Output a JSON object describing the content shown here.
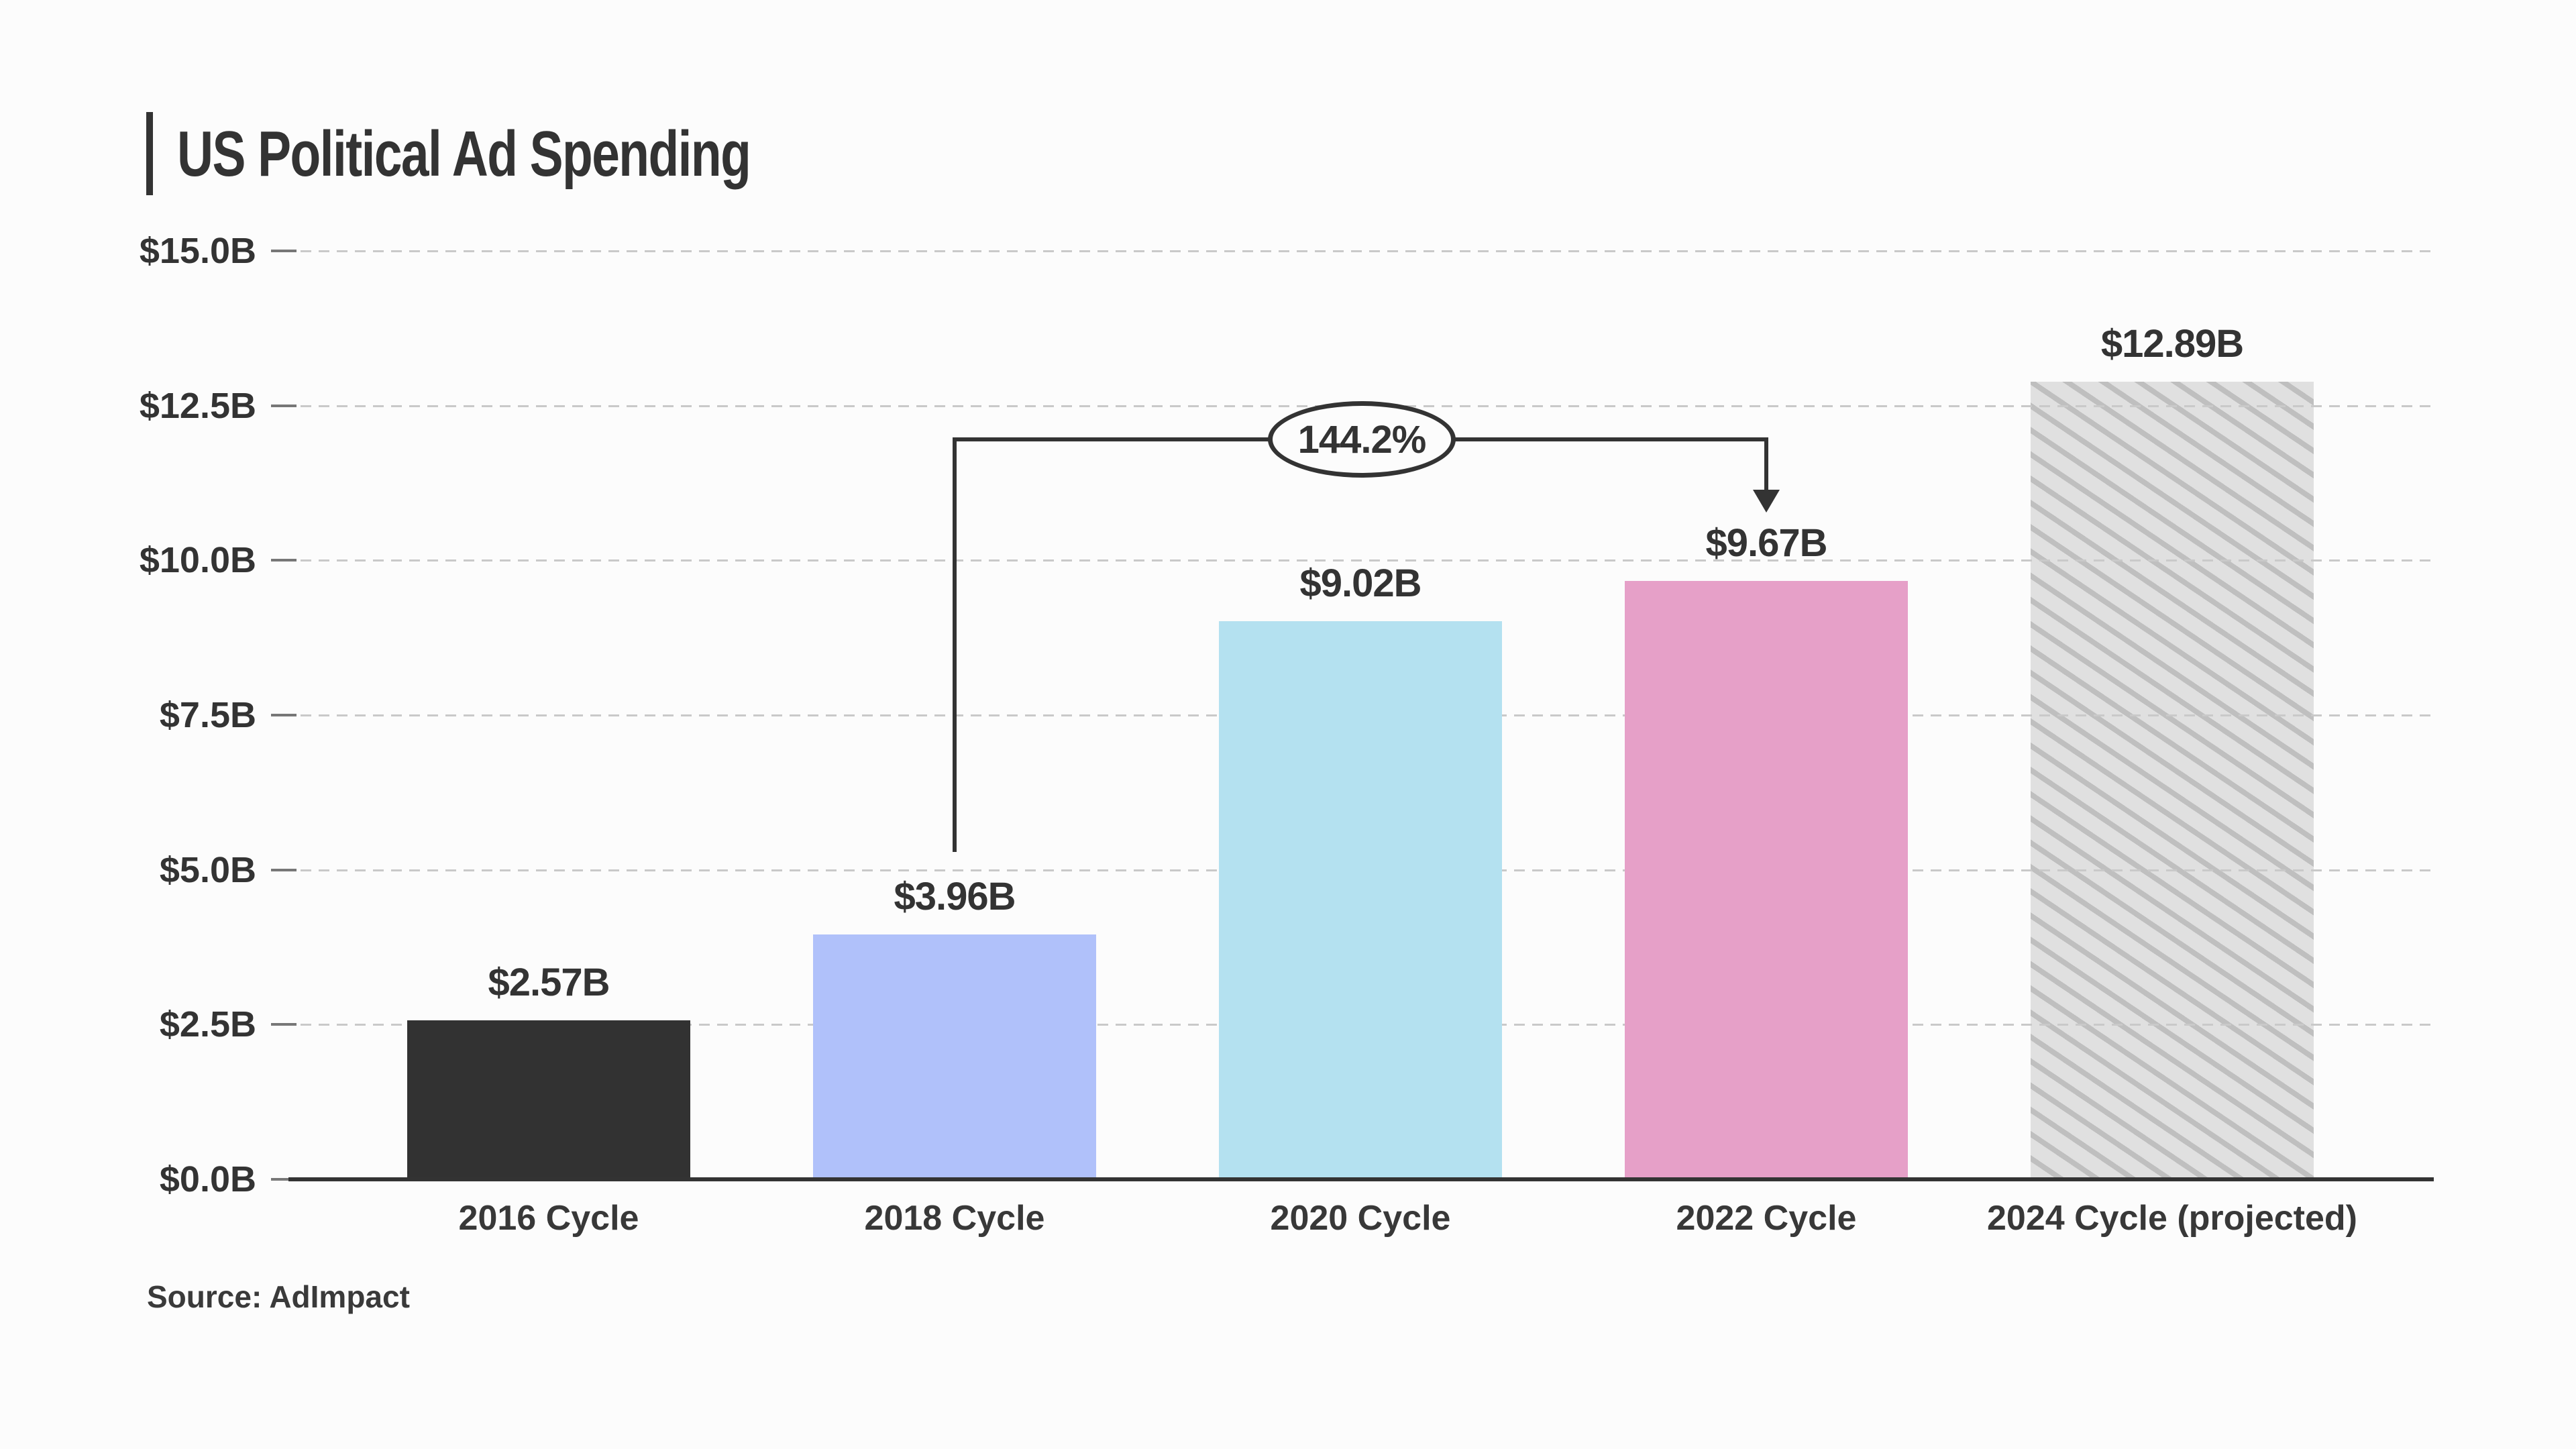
{
  "chart_data": {
    "type": "bar",
    "title": "US Political Ad Spending",
    "source": "Source: AdImpact",
    "categories": [
      "2016 Cycle",
      "2018 Cycle",
      "2020 Cycle",
      "2022 Cycle",
      "2024 Cycle (projected)"
    ],
    "values": [
      2.57,
      3.96,
      9.02,
      9.67,
      12.89
    ],
    "value_labels": [
      "$2.57B",
      "$3.96B",
      "$9.02B",
      "$9.67B",
      "$12.89B"
    ],
    "bar_colors": [
      "#323232",
      "#b0c1fa",
      "#b4e1f0",
      "#e6a0c8",
      "hatch"
    ],
    "hatch": {
      "bg": "#e0e0e0",
      "stripe": "#bfbfbf"
    },
    "ylim": [
      0,
      15
    ],
    "y_axis": {
      "tick_labels": [
        "$0.0B",
        "$2.5B",
        "$5.0B",
        "$7.5B",
        "$10.0B",
        "$12.5B",
        "$15.0B"
      ],
      "tick_values": [
        0,
        2.5,
        5,
        7.5,
        10,
        12.5,
        15
      ]
    },
    "grid": "dashed horizontal, legend none",
    "annotation": {
      "label": "144.2%",
      "from_category": "2018 Cycle",
      "to_category": "2022 Cycle"
    },
    "colors": {
      "background": "#fcfcfc",
      "text": "#333333",
      "gridline": "#c9c9c9",
      "axis": "#333333"
    }
  }
}
